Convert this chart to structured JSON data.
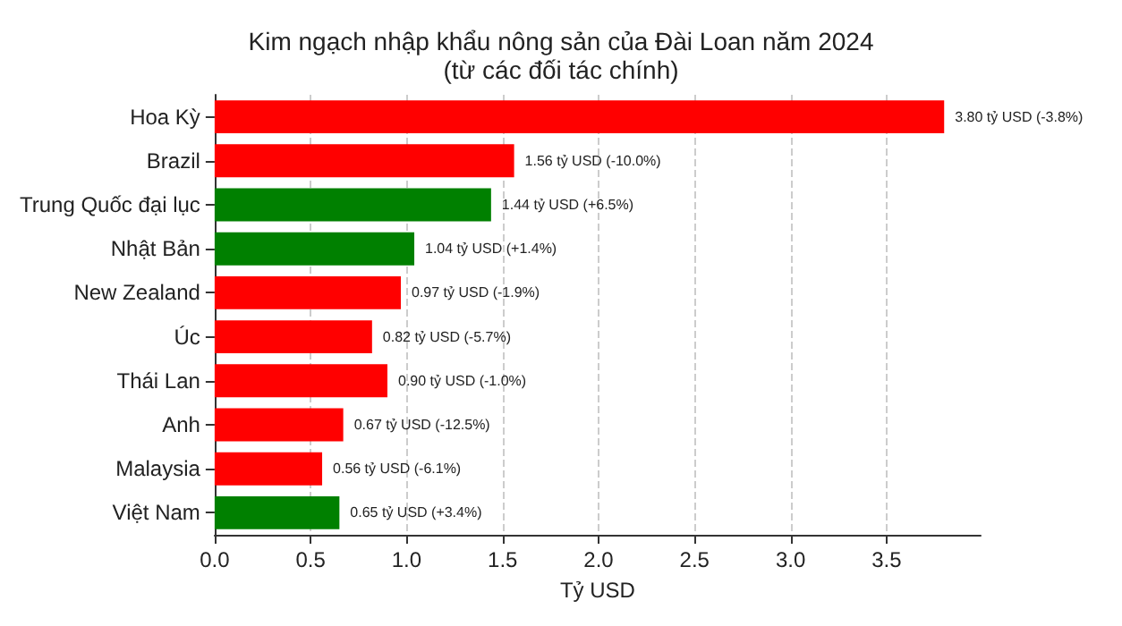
{
  "chart_data": {
    "type": "bar",
    "orientation": "horizontal",
    "title": "Kim ngạch nhập khẩu nông sản của Đài Loan năm 2024\n(từ các đối tác chính)",
    "xlabel": "Tỷ USD",
    "categories": [
      "Hoa Kỳ",
      "Brazil",
      "Trung Quốc đại lục",
      "Nhật Bản",
      "New Zealand",
      "Úc",
      "Thái Lan",
      "Anh",
      "Malaysia",
      "Việt Nam"
    ],
    "values": [
      3.8,
      1.56,
      1.44,
      1.04,
      0.97,
      0.82,
      0.9,
      0.67,
      0.56,
      0.65
    ],
    "colors": [
      "#ff0000",
      "#ff0000",
      "#008000",
      "#008000",
      "#ff0000",
      "#ff0000",
      "#ff0000",
      "#ff0000",
      "#ff0000",
      "#008000"
    ],
    "value_labels": [
      "3.80 tỷ USD (-3.8%)",
      "1.56 tỷ USD (-10.0%)",
      "1.44 tỷ USD (+6.5%)",
      "1.04 tỷ USD (+1.4%)",
      "0.97 tỷ USD (-1.9%)",
      "0.82 tỷ USD (-5.7%)",
      "0.90 tỷ USD (-1.0%)",
      "0.67 tỷ USD (-12.5%)",
      "0.56 tỷ USD (-6.1%)",
      "0.65 tỷ USD (+3.4%)"
    ],
    "xlim": [
      0,
      3.99
    ],
    "xticks": [
      {
        "value": 0,
        "label": "0.0"
      },
      {
        "value": 0.5,
        "label": "0.5"
      },
      {
        "value": 1,
        "label": "1.0"
      },
      {
        "value": 1.5,
        "label": "1.5"
      },
      {
        "value": 2,
        "label": "2.0"
      },
      {
        "value": 2.5,
        "label": "2.5"
      },
      {
        "value": 3,
        "label": "3.0"
      },
      {
        "value": 3.5,
        "label": "3.5"
      }
    ],
    "grid": "x"
  }
}
